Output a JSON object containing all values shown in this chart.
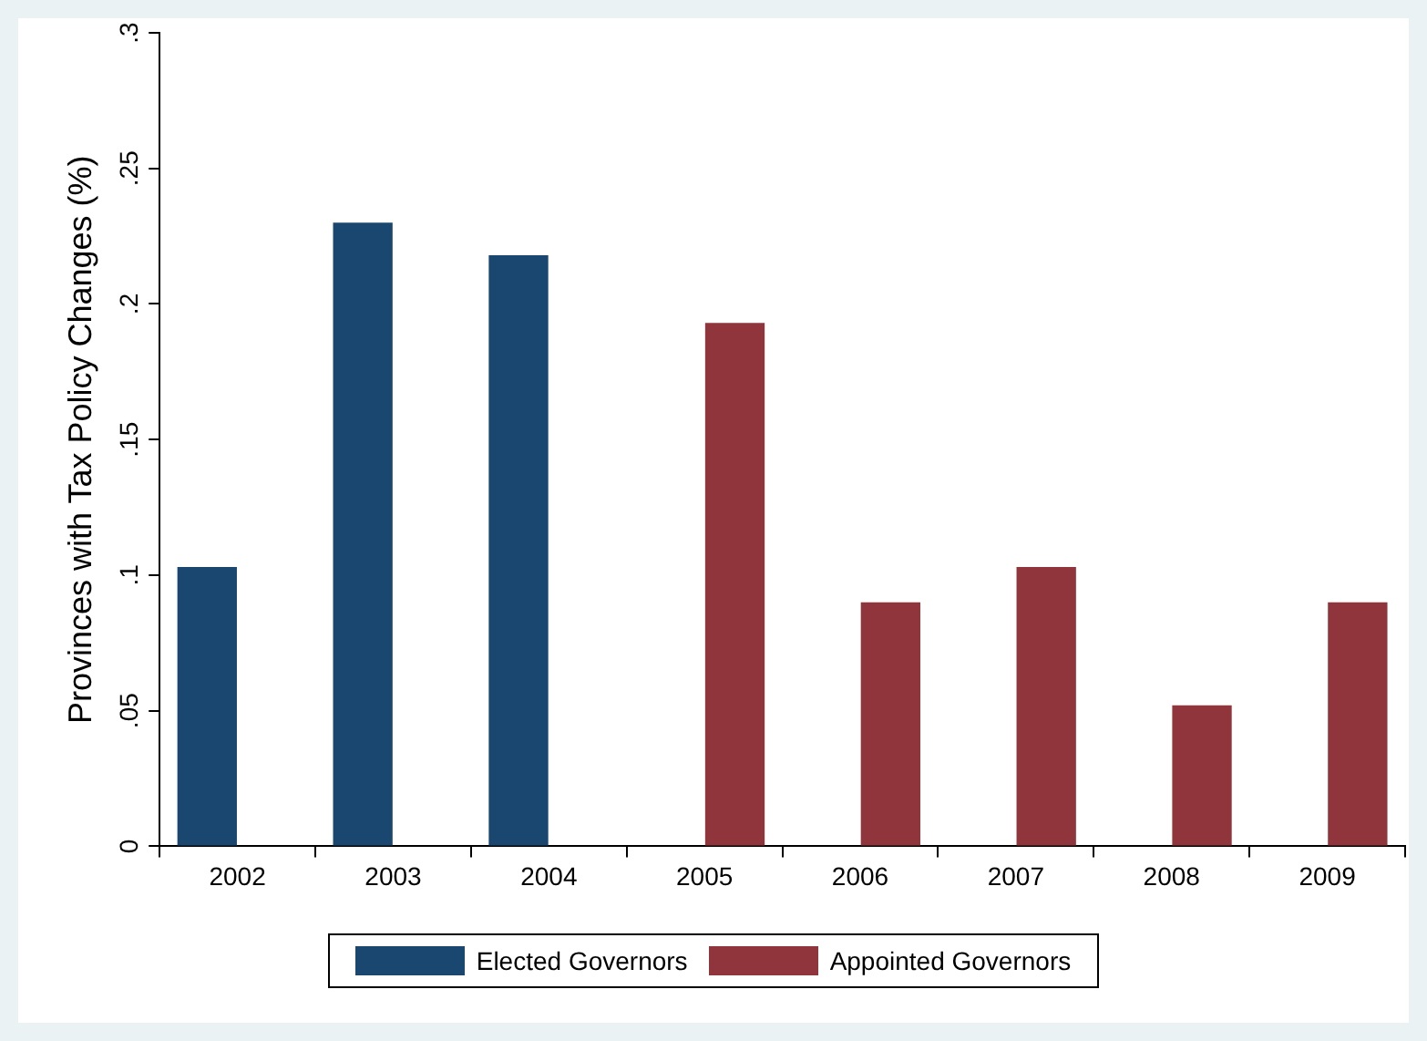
{
  "chart_data": {
    "type": "bar",
    "ylabel": "Provinces with Tax Policy Changes (%)",
    "categories": [
      "2002",
      "2003",
      "2004",
      "2005",
      "2006",
      "2007",
      "2008",
      "2009"
    ],
    "series": [
      {
        "name": "Elected Governors",
        "color": "#1a476f",
        "values": [
          0.103,
          0.23,
          0.218,
          null,
          null,
          null,
          null,
          null
        ]
      },
      {
        "name": "Appointed Governors",
        "color": "#90353b",
        "values": [
          null,
          null,
          null,
          0.193,
          0.09,
          0.103,
          0.052,
          0.09
        ]
      }
    ],
    "ylim": [
      0,
      0.3
    ],
    "yticks": [
      {
        "value": 0,
        "label": "0"
      },
      {
        "value": 0.05,
        "label": ".05"
      },
      {
        "value": 0.1,
        "label": ".1"
      },
      {
        "value": 0.15,
        "label": ".15"
      },
      {
        "value": 0.2,
        "label": ".2"
      },
      {
        "value": 0.25,
        "label": ".25"
      },
      {
        "value": 0.3,
        "label": ".3"
      }
    ],
    "grid": false,
    "legend": "bottom"
  }
}
